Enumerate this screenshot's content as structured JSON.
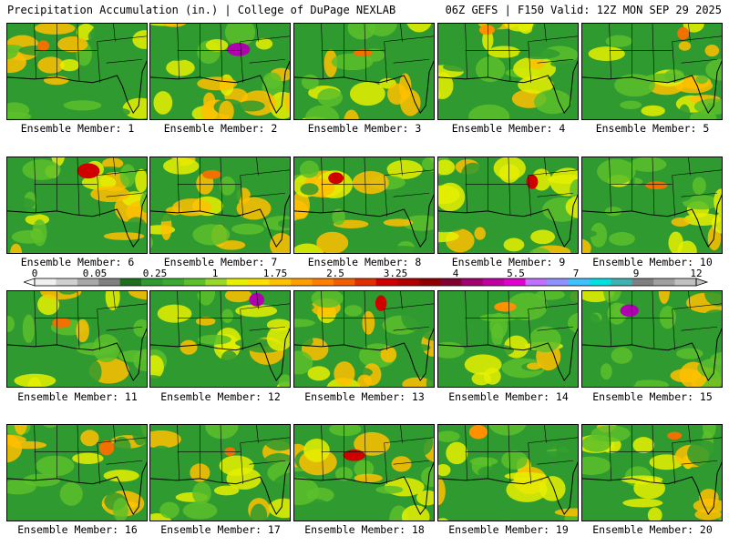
{
  "header": {
    "left_title": "Precipitation Accumulation (in.) | College of DuPage NEXLAB",
    "right_title": "06Z GEFS | F150 Valid: 12Z MON SEP 29 2025"
  },
  "panels": [
    {
      "label": "Ensemble Member: 1",
      "dominant": [
        "#2f9a2f",
        "#5cc02a",
        "#e6f000",
        "#ffc000"
      ],
      "hotspot": "#f07000"
    },
    {
      "label": "Ensemble Member: 2",
      "dominant": [
        "#2f9a2f",
        "#5cc02a",
        "#e6f000",
        "#ffc000"
      ],
      "hotspot": "#b000b0"
    },
    {
      "label": "Ensemble Member: 3",
      "dominant": [
        "#2f9a2f",
        "#5cc02a",
        "#e6f000",
        "#ffc000"
      ],
      "hotspot": "#f07000"
    },
    {
      "label": "Ensemble Member: 4",
      "dominant": [
        "#2f9a2f",
        "#5cc02a",
        "#e6f000",
        "#ffc000"
      ],
      "hotspot": "#ff9000"
    },
    {
      "label": "Ensemble Member: 5",
      "dominant": [
        "#2f9a2f",
        "#5cc02a",
        "#e6f000",
        "#ffc000"
      ],
      "hotspot": "#f07000"
    },
    {
      "label": "Ensemble Member: 6",
      "dominant": [
        "#2f9a2f",
        "#5cc02a",
        "#e6f000",
        "#ffc000"
      ],
      "hotspot": "#d00000"
    },
    {
      "label": "Ensemble Member: 7",
      "dominant": [
        "#2f9a2f",
        "#5cc02a",
        "#e6f000",
        "#ffc000"
      ],
      "hotspot": "#f07000"
    },
    {
      "label": "Ensemble Member: 8",
      "dominant": [
        "#2f9a2f",
        "#5cc02a",
        "#e6f000",
        "#ffc000"
      ],
      "hotspot": "#d00000"
    },
    {
      "label": "Ensemble Member: 9",
      "dominant": [
        "#2f9a2f",
        "#5cc02a",
        "#e6f000",
        "#ffc000"
      ],
      "hotspot": "#d00000"
    },
    {
      "label": "Ensemble Member: 10",
      "dominant": [
        "#2f9a2f",
        "#5cc02a",
        "#e6f000",
        "#ffc000"
      ],
      "hotspot": "#f07000"
    },
    {
      "label": "Ensemble Member: 11",
      "dominant": [
        "#2f9a2f",
        "#5cc02a",
        "#e6f000",
        "#ffc000"
      ],
      "hotspot": "#f07000"
    },
    {
      "label": "Ensemble Member: 12",
      "dominant": [
        "#2f9a2f",
        "#5cc02a",
        "#e6f000",
        "#ffc000"
      ],
      "hotspot": "#b000b0"
    },
    {
      "label": "Ensemble Member: 13",
      "dominant": [
        "#2f9a2f",
        "#5cc02a",
        "#e6f000",
        "#ffc000"
      ],
      "hotspot": "#d00000"
    },
    {
      "label": "Ensemble Member: 14",
      "dominant": [
        "#2f9a2f",
        "#5cc02a",
        "#e6f000",
        "#ffc000"
      ],
      "hotspot": "#ff9000"
    },
    {
      "label": "Ensemble Member: 15",
      "dominant": [
        "#2f9a2f",
        "#5cc02a",
        "#e6f000",
        "#ffc000"
      ],
      "hotspot": "#b000b0"
    },
    {
      "label": "Ensemble Member: 16",
      "dominant": [
        "#2f9a2f",
        "#5cc02a",
        "#e6f000",
        "#ffc000"
      ],
      "hotspot": "#f07000"
    },
    {
      "label": "Ensemble Member: 17",
      "dominant": [
        "#2f9a2f",
        "#5cc02a",
        "#e6f000",
        "#ffc000"
      ],
      "hotspot": "#f07000"
    },
    {
      "label": "Ensemble Member: 18",
      "dominant": [
        "#2f9a2f",
        "#5cc02a",
        "#e6f000",
        "#ffc000"
      ],
      "hotspot": "#d00000"
    },
    {
      "label": "Ensemble Member: 19",
      "dominant": [
        "#2f9a2f",
        "#5cc02a",
        "#e6f000",
        "#ffc000"
      ],
      "hotspot": "#ff9000"
    },
    {
      "label": "Ensemble Member: 20",
      "dominant": [
        "#2f9a2f",
        "#5cc02a",
        "#e6f000",
        "#ffc000"
      ],
      "hotspot": "#f07000"
    }
  ],
  "colorbar": {
    "labels": [
      "0",
      "0.05",
      "0.25",
      "1",
      "1.75",
      "2.5",
      "3.25",
      "4",
      "5.5",
      "7",
      "9",
      "12"
    ],
    "colors": [
      "#f0f0f0",
      "#d0d0d0",
      "#a8a8a8",
      "#808080",
      "#1e6e1e",
      "#2f9a2f",
      "#3aaa30",
      "#5cc02a",
      "#9ad828",
      "#e6f000",
      "#ffe000",
      "#ffc000",
      "#ffa000",
      "#ff8000",
      "#f06000",
      "#e03000",
      "#d00000",
      "#b00000",
      "#900000",
      "#800030",
      "#a00070",
      "#c000a0",
      "#e000d0",
      "#c070ff",
      "#9090ff",
      "#40c0ff",
      "#00e0e0",
      "#40b0b0",
      "#808080",
      "#a0a0a0",
      "#c0c0c0"
    ]
  }
}
